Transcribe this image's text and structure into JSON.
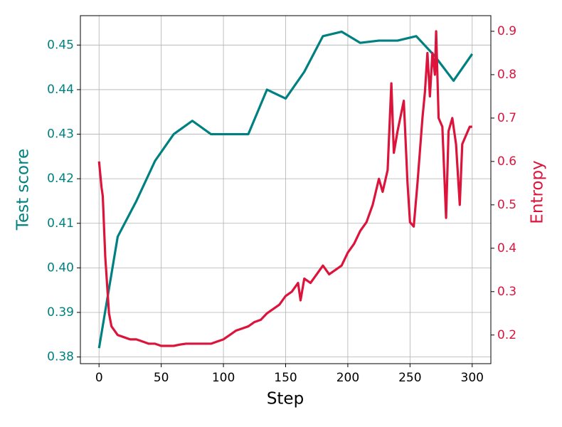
{
  "chart_data": {
    "type": "line",
    "xlabel": "Step",
    "ylabel": "Test score",
    "y2label": "Entropy",
    "xlim": [
      -15,
      315
    ],
    "xticks": [
      0,
      50,
      100,
      150,
      200,
      250,
      300
    ],
    "ylim": [
      0.3785,
      0.4566
    ],
    "yticks": [
      0.38,
      0.39,
      {
        "value": 0.4,
        "label": "0.40"
      },
      0.41,
      0.42,
      0.43,
      0.44,
      0.45
    ],
    "y2lim": [
      0.134,
      0.936
    ],
    "y2ticks": [
      0.2,
      0.3,
      0.4,
      0.5,
      0.6,
      0.7,
      0.8,
      0.9
    ],
    "grid": true,
    "series": [
      {
        "name": "Test score",
        "color": "#008080",
        "x": [
          0,
          15,
          30,
          45,
          60,
          75,
          90,
          105,
          120,
          135,
          150,
          165,
          180,
          195,
          210,
          225,
          240,
          255,
          270,
          285,
          300
        ],
        "values": [
          0.382,
          0.407,
          0.415,
          0.424,
          0.43,
          0.433,
          0.43,
          0.43,
          0.43,
          0.44,
          0.438,
          0.444,
          0.452,
          0.453,
          0.4505,
          0.451,
          0.451,
          0.452,
          0.4475,
          0.442,
          0.448
        ]
      },
      {
        "name": "Entropy",
        "color": "#dc143c",
        "axis": "y2",
        "x": [
          0,
          2,
          3,
          5,
          8,
          10,
          15,
          20,
          25,
          30,
          35,
          40,
          45,
          50,
          55,
          60,
          65,
          70,
          75,
          80,
          85,
          90,
          95,
          100,
          105,
          110,
          115,
          120,
          125,
          130,
          135,
          140,
          145,
          150,
          155,
          160,
          162,
          165,
          170,
          175,
          180,
          185,
          190,
          195,
          200,
          205,
          210,
          215,
          220,
          225,
          228,
          232,
          235,
          237,
          240,
          245,
          248,
          250,
          253,
          256,
          260,
          262,
          264,
          266,
          268,
          270,
          271,
          273,
          276,
          279,
          281,
          284,
          287,
          290,
          292,
          295,
          298,
          300
        ],
        "values": [
          0.6,
          0.54,
          0.52,
          0.38,
          0.25,
          0.22,
          0.2,
          0.195,
          0.19,
          0.19,
          0.185,
          0.18,
          0.18,
          0.175,
          0.175,
          0.175,
          0.178,
          0.18,
          0.18,
          0.18,
          0.18,
          0.18,
          0.185,
          0.19,
          0.2,
          0.21,
          0.215,
          0.22,
          0.23,
          0.235,
          0.25,
          0.26,
          0.27,
          0.29,
          0.3,
          0.32,
          0.28,
          0.33,
          0.32,
          0.34,
          0.36,
          0.34,
          0.35,
          0.36,
          0.39,
          0.41,
          0.44,
          0.46,
          0.5,
          0.56,
          0.53,
          0.58,
          0.78,
          0.62,
          0.67,
          0.74,
          0.55,
          0.46,
          0.45,
          0.55,
          0.7,
          0.76,
          0.85,
          0.75,
          0.85,
          0.8,
          0.9,
          0.7,
          0.68,
          0.47,
          0.67,
          0.7,
          0.64,
          0.5,
          0.64,
          0.66,
          0.68,
          0.68
        ]
      }
    ]
  }
}
